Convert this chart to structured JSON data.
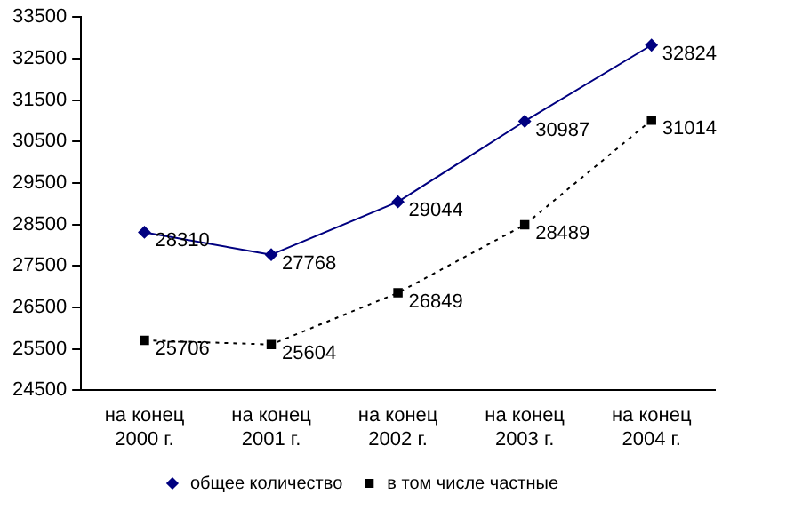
{
  "chart_data": {
    "type": "line",
    "categories": [
      "на конец\n2000 г.",
      "на конец\n2001 г.",
      "на конец\n2002 г.",
      "на конец\n2003 г.",
      "на конец\n2004 г."
    ],
    "series": [
      {
        "name": "общее количество",
        "color": "#000080",
        "values": [
          28310,
          27768,
          29044,
          30987,
          32824
        ],
        "marker": "diamond",
        "line_style": "solid"
      },
      {
        "name": "в том числе частные",
        "color": "#000000",
        "values": [
          25706,
          25604,
          26849,
          28489,
          31014
        ],
        "marker": "square",
        "line_style": "dotted"
      }
    ],
    "ylim": [
      24500,
      33500
    ],
    "yticks": [
      24500,
      25500,
      26500,
      27500,
      28500,
      29500,
      30500,
      31500,
      32500,
      33500
    ],
    "grid": false,
    "legend": "bottom",
    "data_labels": true
  }
}
